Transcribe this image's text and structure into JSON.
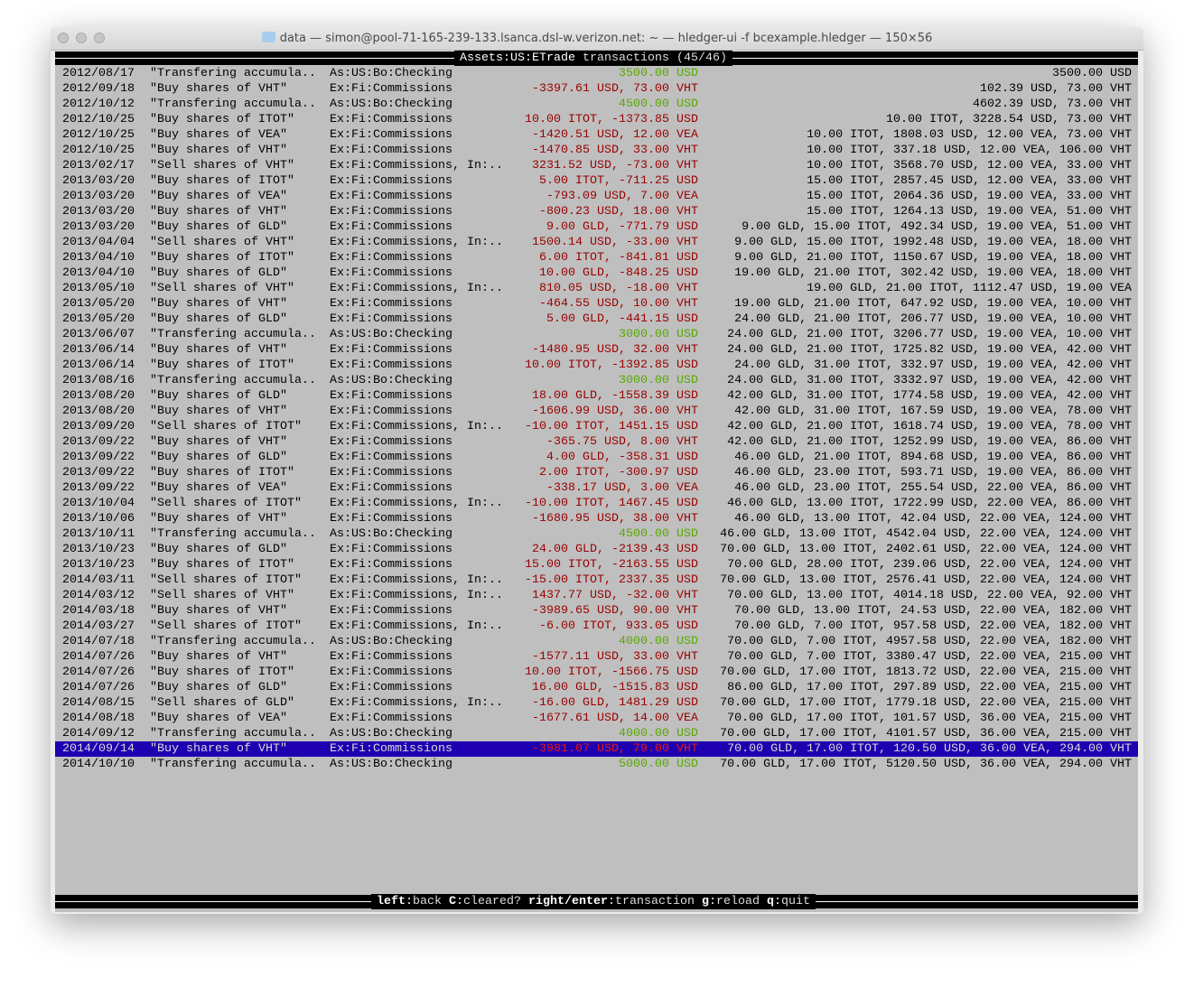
{
  "window": {
    "title": "data — simon@pool-71-165-239-133.lsanca.dsl-w.verizon.net: ~ — hledger-ui -f bcexample.hledger — 150×56"
  },
  "header": {
    "account": "Assets:US:ETrade",
    "label": "transactions",
    "position": "(45/46)"
  },
  "footer": {
    "keys": [
      {
        "key": "left",
        "action": "back"
      },
      {
        "key": "C",
        "action": "cleared?"
      },
      {
        "key": "right/enter",
        "action": "transaction"
      },
      {
        "key": "g",
        "action": "reload"
      },
      {
        "key": "q",
        "action": "quit"
      }
    ]
  },
  "colors": {
    "negative": "#9a0000",
    "positive": "#58a800",
    "selected_bg": "#1e00b0",
    "background": "#bfbfbf"
  },
  "selected_index": 44,
  "rows": [
    [
      "2012/08/17",
      "\"Transfering accumula..",
      "As:US:Bo:Checking",
      "3500.00 USD",
      "green",
      "3500.00 USD"
    ],
    [
      "2012/09/18",
      "\"Buy shares of VHT\"",
      "Ex:Fi:Commissions",
      "-3397.61 USD, 73.00 VHT",
      "red",
      "102.39 USD, 73.00 VHT"
    ],
    [
      "2012/10/12",
      "\"Transfering accumula..",
      "As:US:Bo:Checking",
      "4500.00 USD",
      "green",
      "4602.39 USD, 73.00 VHT"
    ],
    [
      "2012/10/25",
      "\"Buy shares of ITOT\"",
      "Ex:Fi:Commissions",
      "10.00 ITOT, -1373.85 USD",
      "red",
      "10.00 ITOT, 3228.54 USD, 73.00 VHT"
    ],
    [
      "2012/10/25",
      "\"Buy shares of VEA\"",
      "Ex:Fi:Commissions",
      "-1420.51 USD, 12.00 VEA",
      "red",
      "10.00 ITOT, 1808.03 USD, 12.00 VEA, 73.00 VHT"
    ],
    [
      "2012/10/25",
      "\"Buy shares of VHT\"",
      "Ex:Fi:Commissions",
      "-1470.85 USD, 33.00 VHT",
      "red",
      "10.00 ITOT, 337.18 USD, 12.00 VEA, 106.00 VHT"
    ],
    [
      "2013/02/17",
      "\"Sell shares of VHT\"",
      "Ex:Fi:Commissions, In:..",
      "3231.52 USD, -73.00 VHT",
      "red",
      "10.00 ITOT, 3568.70 USD, 12.00 VEA, 33.00 VHT"
    ],
    [
      "2013/03/20",
      "\"Buy shares of ITOT\"",
      "Ex:Fi:Commissions",
      "5.00 ITOT, -711.25 USD",
      "red",
      "15.00 ITOT, 2857.45 USD, 12.00 VEA, 33.00 VHT"
    ],
    [
      "2013/03/20",
      "\"Buy shares of VEA\"",
      "Ex:Fi:Commissions",
      "-793.09 USD, 7.00 VEA",
      "red",
      "15.00 ITOT, 2064.36 USD, 19.00 VEA, 33.00 VHT"
    ],
    [
      "2013/03/20",
      "\"Buy shares of VHT\"",
      "Ex:Fi:Commissions",
      "-800.23 USD, 18.00 VHT",
      "red",
      "15.00 ITOT, 1264.13 USD, 19.00 VEA, 51.00 VHT"
    ],
    [
      "2013/03/20",
      "\"Buy shares of GLD\"",
      "Ex:Fi:Commissions",
      "9.00 GLD, -771.79 USD",
      "red",
      "9.00 GLD, 15.00 ITOT, 492.34 USD, 19.00 VEA, 51.00 VHT"
    ],
    [
      "2013/04/04",
      "\"Sell shares of VHT\"",
      "Ex:Fi:Commissions, In:..",
      "1500.14 USD, -33.00 VHT",
      "red",
      "9.00 GLD, 15.00 ITOT, 1992.48 USD, 19.00 VEA, 18.00 VHT"
    ],
    [
      "2013/04/10",
      "\"Buy shares of ITOT\"",
      "Ex:Fi:Commissions",
      "6.00 ITOT, -841.81 USD",
      "red",
      "9.00 GLD, 21.00 ITOT, 1150.67 USD, 19.00 VEA, 18.00 VHT"
    ],
    [
      "2013/04/10",
      "\"Buy shares of GLD\"",
      "Ex:Fi:Commissions",
      "10.00 GLD, -848.25 USD",
      "red",
      "19.00 GLD, 21.00 ITOT, 302.42 USD, 19.00 VEA, 18.00 VHT"
    ],
    [
      "2013/05/10",
      "\"Sell shares of VHT\"",
      "Ex:Fi:Commissions, In:..",
      "810.05 USD, -18.00 VHT",
      "red",
      "19.00 GLD, 21.00 ITOT, 1112.47 USD, 19.00 VEA"
    ],
    [
      "2013/05/20",
      "\"Buy shares of VHT\"",
      "Ex:Fi:Commissions",
      "-464.55 USD, 10.00 VHT",
      "red",
      "19.00 GLD, 21.00 ITOT, 647.92 USD, 19.00 VEA, 10.00 VHT"
    ],
    [
      "2013/05/20",
      "\"Buy shares of GLD\"",
      "Ex:Fi:Commissions",
      "5.00 GLD, -441.15 USD",
      "red",
      "24.00 GLD, 21.00 ITOT, 206.77 USD, 19.00 VEA, 10.00 VHT"
    ],
    [
      "2013/06/07",
      "\"Transfering accumula..",
      "As:US:Bo:Checking",
      "3000.00 USD",
      "green",
      "24.00 GLD, 21.00 ITOT, 3206.77 USD, 19.00 VEA, 10.00 VHT"
    ],
    [
      "2013/06/14",
      "\"Buy shares of VHT\"",
      "Ex:Fi:Commissions",
      "-1480.95 USD, 32.00 VHT",
      "red",
      "24.00 GLD, 21.00 ITOT, 1725.82 USD, 19.00 VEA, 42.00 VHT"
    ],
    [
      "2013/06/14",
      "\"Buy shares of ITOT\"",
      "Ex:Fi:Commissions",
      "10.00 ITOT, -1392.85 USD",
      "red",
      "24.00 GLD, 31.00 ITOT, 332.97 USD, 19.00 VEA, 42.00 VHT"
    ],
    [
      "2013/08/16",
      "\"Transfering accumula..",
      "As:US:Bo:Checking",
      "3000.00 USD",
      "green",
      "24.00 GLD, 31.00 ITOT, 3332.97 USD, 19.00 VEA, 42.00 VHT"
    ],
    [
      "2013/08/20",
      "\"Buy shares of GLD\"",
      "Ex:Fi:Commissions",
      "18.00 GLD, -1558.39 USD",
      "red",
      "42.00 GLD, 31.00 ITOT, 1774.58 USD, 19.00 VEA, 42.00 VHT"
    ],
    [
      "2013/08/20",
      "\"Buy shares of VHT\"",
      "Ex:Fi:Commissions",
      "-1606.99 USD, 36.00 VHT",
      "red",
      "42.00 GLD, 31.00 ITOT, 167.59 USD, 19.00 VEA, 78.00 VHT"
    ],
    [
      "2013/09/20",
      "\"Sell shares of ITOT\"",
      "Ex:Fi:Commissions, In:..",
      "-10.00 ITOT, 1451.15 USD",
      "red",
      "42.00 GLD, 21.00 ITOT, 1618.74 USD, 19.00 VEA, 78.00 VHT"
    ],
    [
      "2013/09/22",
      "\"Buy shares of VHT\"",
      "Ex:Fi:Commissions",
      "-365.75 USD, 8.00 VHT",
      "red",
      "42.00 GLD, 21.00 ITOT, 1252.99 USD, 19.00 VEA, 86.00 VHT"
    ],
    [
      "2013/09/22",
      "\"Buy shares of GLD\"",
      "Ex:Fi:Commissions",
      "4.00 GLD, -358.31 USD",
      "red",
      "46.00 GLD, 21.00 ITOT, 894.68 USD, 19.00 VEA, 86.00 VHT"
    ],
    [
      "2013/09/22",
      "\"Buy shares of ITOT\"",
      "Ex:Fi:Commissions",
      "2.00 ITOT, -300.97 USD",
      "red",
      "46.00 GLD, 23.00 ITOT, 593.71 USD, 19.00 VEA, 86.00 VHT"
    ],
    [
      "2013/09/22",
      "\"Buy shares of VEA\"",
      "Ex:Fi:Commissions",
      "-338.17 USD, 3.00 VEA",
      "red",
      "46.00 GLD, 23.00 ITOT, 255.54 USD, 22.00 VEA, 86.00 VHT"
    ],
    [
      "2013/10/04",
      "\"Sell shares of ITOT\"",
      "Ex:Fi:Commissions, In:..",
      "-10.00 ITOT, 1467.45 USD",
      "red",
      "46.00 GLD, 13.00 ITOT, 1722.99 USD, 22.00 VEA, 86.00 VHT"
    ],
    [
      "2013/10/06",
      "\"Buy shares of VHT\"",
      "Ex:Fi:Commissions",
      "-1680.95 USD, 38.00 VHT",
      "red",
      "46.00 GLD, 13.00 ITOT, 42.04 USD, 22.00 VEA, 124.00 VHT"
    ],
    [
      "2013/10/11",
      "\"Transfering accumula..",
      "As:US:Bo:Checking",
      "4500.00 USD",
      "green",
      "46.00 GLD, 13.00 ITOT, 4542.04 USD, 22.00 VEA, 124.00 VHT"
    ],
    [
      "2013/10/23",
      "\"Buy shares of GLD\"",
      "Ex:Fi:Commissions",
      "24.00 GLD, -2139.43 USD",
      "red",
      "70.00 GLD, 13.00 ITOT, 2402.61 USD, 22.00 VEA, 124.00 VHT"
    ],
    [
      "2013/10/23",
      "\"Buy shares of ITOT\"",
      "Ex:Fi:Commissions",
      "15.00 ITOT, -2163.55 USD",
      "red",
      "70.00 GLD, 28.00 ITOT, 239.06 USD, 22.00 VEA, 124.00 VHT"
    ],
    [
      "2014/03/11",
      "\"Sell shares of ITOT\"",
      "Ex:Fi:Commissions, In:..",
      "-15.00 ITOT, 2337.35 USD",
      "red",
      "70.00 GLD, 13.00 ITOT, 2576.41 USD, 22.00 VEA, 124.00 VHT"
    ],
    [
      "2014/03/12",
      "\"Sell shares of VHT\"",
      "Ex:Fi:Commissions, In:..",
      "1437.77 USD, -32.00 VHT",
      "red",
      "70.00 GLD, 13.00 ITOT, 4014.18 USD, 22.00 VEA, 92.00 VHT"
    ],
    [
      "2014/03/18",
      "\"Buy shares of VHT\"",
      "Ex:Fi:Commissions",
      "-3989.65 USD, 90.00 VHT",
      "red",
      "70.00 GLD, 13.00 ITOT, 24.53 USD, 22.00 VEA, 182.00 VHT"
    ],
    [
      "2014/03/27",
      "\"Sell shares of ITOT\"",
      "Ex:Fi:Commissions, In:..",
      "-6.00 ITOT, 933.05 USD",
      "red",
      "70.00 GLD, 7.00 ITOT, 957.58 USD, 22.00 VEA, 182.00 VHT"
    ],
    [
      "2014/07/18",
      "\"Transfering accumula..",
      "As:US:Bo:Checking",
      "4000.00 USD",
      "green",
      "70.00 GLD, 7.00 ITOT, 4957.58 USD, 22.00 VEA, 182.00 VHT"
    ],
    [
      "2014/07/26",
      "\"Buy shares of VHT\"",
      "Ex:Fi:Commissions",
      "-1577.11 USD, 33.00 VHT",
      "red",
      "70.00 GLD, 7.00 ITOT, 3380.47 USD, 22.00 VEA, 215.00 VHT"
    ],
    [
      "2014/07/26",
      "\"Buy shares of ITOT\"",
      "Ex:Fi:Commissions",
      "10.00 ITOT, -1566.75 USD",
      "red",
      "70.00 GLD, 17.00 ITOT, 1813.72 USD, 22.00 VEA, 215.00 VHT"
    ],
    [
      "2014/07/26",
      "\"Buy shares of GLD\"",
      "Ex:Fi:Commissions",
      "16.00 GLD, -1515.83 USD",
      "red",
      "86.00 GLD, 17.00 ITOT, 297.89 USD, 22.00 VEA, 215.00 VHT"
    ],
    [
      "2014/08/15",
      "\"Sell shares of GLD\"",
      "Ex:Fi:Commissions, In:..",
      "-16.00 GLD, 1481.29 USD",
      "red",
      "70.00 GLD, 17.00 ITOT, 1779.18 USD, 22.00 VEA, 215.00 VHT"
    ],
    [
      "2014/08/18",
      "\"Buy shares of VEA\"",
      "Ex:Fi:Commissions",
      "-1677.61 USD, 14.00 VEA",
      "red",
      "70.00 GLD, 17.00 ITOT, 101.57 USD, 36.00 VEA, 215.00 VHT"
    ],
    [
      "2014/09/12",
      "\"Transfering accumula..",
      "As:US:Bo:Checking",
      "4000.00 USD",
      "green",
      "70.00 GLD, 17.00 ITOT, 4101.57 USD, 36.00 VEA, 215.00 VHT"
    ],
    [
      "2014/09/14",
      "\"Buy shares of VHT\"",
      "Ex:Fi:Commissions",
      "-3981.07 USD, 79.00 VHT",
      "red",
      "70.00 GLD, 17.00 ITOT, 120.50 USD, 36.00 VEA, 294.00 VHT"
    ],
    [
      "2014/10/10",
      "\"Transfering accumula..",
      "As:US:Bo:Checking",
      "5000.00 USD",
      "green",
      "70.00 GLD, 17.00 ITOT, 5120.50 USD, 36.00 VEA, 294.00 VHT"
    ]
  ]
}
